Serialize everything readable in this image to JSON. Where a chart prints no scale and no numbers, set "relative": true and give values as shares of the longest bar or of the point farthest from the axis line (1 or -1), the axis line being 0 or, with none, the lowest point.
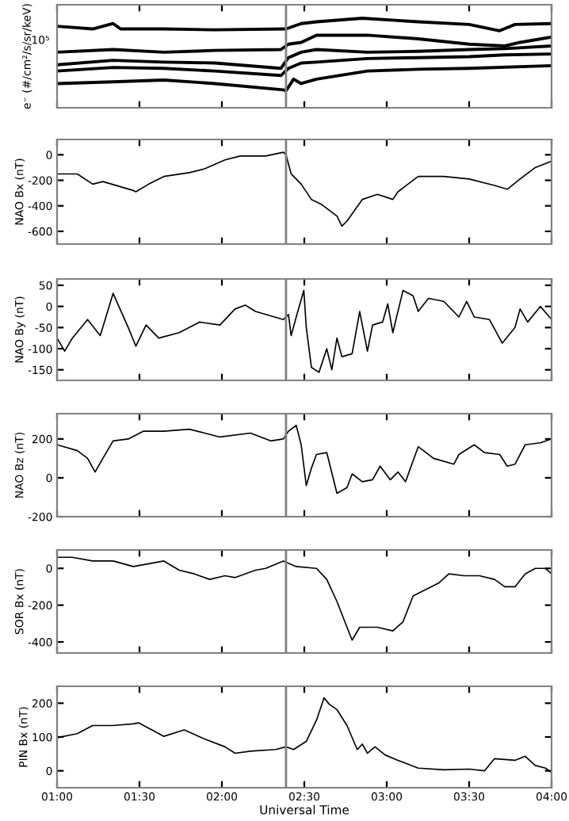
{
  "chart_data": [
    {
      "type": "line",
      "relative": true,
      "ylabel": "e⁻ (#/cm²/s/sr/keV)",
      "annotations": [
        "10⁵"
      ],
      "tick_labels": false,
      "xlim": [
        1,
        4
      ],
      "xticks": [
        {
          "value": 1,
          "label": null
        },
        {
          "value": 1.5,
          "label": null
        },
        {
          "value": 2,
          "label": null
        },
        {
          "value": 2.5,
          "label": null
        },
        {
          "value": 3,
          "label": null
        },
        {
          "value": 3.5,
          "label": null
        },
        {
          "value": 4,
          "label": null
        }
      ],
      "ref_lines": [
        {
          "axis": "x",
          "value": 2.389,
          "label": null,
          "color": "#808080"
        }
      ],
      "series": [
        {
          "color": "#000000",
          "x": [
            1.0,
            1.216,
            1.34,
            1.386,
            1.648,
            1.957,
            2.389,
            2.481,
            2.574,
            2.852,
            3.191,
            3.5,
            3.685,
            3.778,
            4.0
          ],
          "values": [
            0.91,
            0.88,
            0.94,
            0.88,
            0.88,
            0.87,
            0.88,
            0.94,
            0.96,
            1.0,
            0.96,
            0.93,
            0.86,
            0.93,
            0.94
          ]
        },
        {
          "color": "#000000",
          "x": [
            1.0,
            1.34,
            1.648,
            1.957,
            2.358,
            2.404,
            2.481,
            2.574,
            2.883,
            3.191,
            3.5,
            3.716,
            3.809,
            4.0
          ],
          "values": [
            0.62,
            0.65,
            0.62,
            0.64,
            0.65,
            0.71,
            0.73,
            0.81,
            0.81,
            0.77,
            0.71,
            0.69,
            0.73,
            0.79
          ]
        },
        {
          "color": "#000000",
          "x": [
            1.0,
            1.34,
            1.648,
            1.957,
            2.358,
            2.404,
            2.481,
            2.574,
            2.883,
            3.191,
            3.5,
            3.716,
            4.0
          ],
          "values": [
            0.48,
            0.53,
            0.51,
            0.5,
            0.44,
            0.56,
            0.62,
            0.65,
            0.62,
            0.63,
            0.65,
            0.66,
            0.69
          ]
        },
        {
          "color": "#000000",
          "x": [
            1.0,
            1.34,
            1.648,
            1.957,
            2.358,
            2.404,
            2.481,
            2.574,
            2.883,
            3.191,
            3.5,
            3.716,
            4.0
          ],
          "values": [
            0.41,
            0.45,
            0.44,
            0.41,
            0.36,
            0.44,
            0.5,
            0.51,
            0.55,
            0.56,
            0.57,
            0.59,
            0.6
          ]
        },
        {
          "color": "#000000",
          "x": [
            1.0,
            1.34,
            1.648,
            1.957,
            2.373,
            2.389,
            2.435,
            2.481,
            2.574,
            2.883,
            3.191,
            3.5,
            4.0
          ],
          "values": [
            0.27,
            0.29,
            0.31,
            0.27,
            0.2,
            0.19,
            0.32,
            0.27,
            0.32,
            0.41,
            0.43,
            0.44,
            0.47
          ]
        }
      ]
    },
    {
      "type": "line",
      "ylabel": "NAO Bx (nT)",
      "tick_labels": "y",
      "xlim": [
        1,
        4
      ],
      "xticks": [
        {
          "value": 1,
          "label": null
        },
        {
          "value": 1.5,
          "label": null
        },
        {
          "value": 2,
          "label": null
        },
        {
          "value": 2.5,
          "label": null
        },
        {
          "value": 3,
          "label": null
        },
        {
          "value": 3.5,
          "label": null
        },
        {
          "value": 4,
          "label": null
        }
      ],
      "ylim": [
        -700,
        120
      ],
      "yticks": [
        -600,
        -400,
        -200,
        0
      ],
      "ref_lines": [
        {
          "axis": "x",
          "value": 2.389,
          "label": null,
          "color": "#808080"
        }
      ],
      "series": [
        {
          "color": "#000000",
          "x": [
            1.0,
            1.123,
            1.216,
            1.278,
            1.463,
            1.478,
            1.556,
            1.648,
            1.802,
            1.895,
            2.019,
            2.111,
            2.265,
            2.373,
            2.389,
            2.42,
            2.451,
            2.481,
            2.543,
            2.605,
            2.698,
            2.728,
            2.759,
            2.852,
            2.944,
            3.037,
            3.068,
            3.191,
            3.346,
            3.5,
            3.654,
            3.731,
            3.809,
            3.901,
            4.0
          ],
          "values": [
            -150,
            -150,
            -230,
            -210,
            -280,
            -290,
            -230,
            -170,
            -140,
            -110,
            -40,
            -10,
            -10,
            20,
            0,
            -150,
            -190,
            -230,
            -350,
            -390,
            -480,
            -560,
            -520,
            -350,
            -310,
            -350,
            -290,
            -170,
            -170,
            -190,
            -240,
            -270,
            -190,
            -100,
            -50
          ]
        }
      ]
    },
    {
      "type": "line",
      "ylabel": "NAO By (nT)",
      "tick_labels": "y",
      "xlim": [
        1,
        4
      ],
      "xticks": [
        {
          "value": 1,
          "label": null
        },
        {
          "value": 1.5,
          "label": null
        },
        {
          "value": 2,
          "label": null
        },
        {
          "value": 2.5,
          "label": null
        },
        {
          "value": 3,
          "label": null
        },
        {
          "value": 3.5,
          "label": null
        },
        {
          "value": 4,
          "label": null
        }
      ],
      "ylim": [
        -175,
        65
      ],
      "yticks": [
        -150,
        -100,
        -50,
        0,
        50
      ],
      "ref_lines": [
        {
          "axis": "x",
          "value": 2.389,
          "label": null,
          "color": "#808080"
        }
      ],
      "series": [
        {
          "color": "#000000",
          "x": [
            1.0,
            1.046,
            1.093,
            1.185,
            1.262,
            1.34,
            1.432,
            1.478,
            1.54,
            1.617,
            1.741,
            1.864,
            1.988,
            2.08,
            2.142,
            2.204,
            2.373,
            2.404,
            2.42,
            2.451,
            2.497,
            2.512,
            2.543,
            2.589,
            2.636,
            2.667,
            2.698,
            2.728,
            2.79,
            2.836,
            2.883,
            2.914,
            2.975,
            3.006,
            3.037,
            3.099,
            3.16,
            3.191,
            3.253,
            3.346,
            3.438,
            3.485,
            3.531,
            3.623,
            3.701,
            3.778,
            3.809,
            3.855,
            3.932,
            4.0
          ],
          "values": [
            -75,
            -106,
            -75,
            -31,
            -69,
            31,
            -50,
            -94,
            -44,
            -75,
            -62,
            -37,
            -44,
            -6,
            3,
            -12,
            -31,
            -19,
            -69,
            -25,
            38,
            -50,
            -144,
            -156,
            -100,
            -150,
            -75,
            -119,
            -112,
            -12,
            -106,
            -44,
            -37,
            6,
            -62,
            38,
            25,
            -12,
            19,
            12,
            -25,
            12,
            -25,
            -31,
            -87,
            -50,
            -6,
            -37,
            0,
            -31
          ]
        }
      ]
    },
    {
      "type": "line",
      "ylabel": "NAO Bz (nT)",
      "tick_labels": "y",
      "xlim": [
        1,
        4
      ],
      "xticks": [
        {
          "value": 1,
          "label": null
        },
        {
          "value": 1.5,
          "label": null
        },
        {
          "value": 2,
          "label": null
        },
        {
          "value": 2.5,
          "label": null
        },
        {
          "value": 3,
          "label": null
        },
        {
          "value": 3.5,
          "label": null
        },
        {
          "value": 4,
          "label": null
        }
      ],
      "ylim": [
        -200,
        330
      ],
      "yticks": [
        -200,
        0,
        200
      ],
      "ref_lines": [
        {
          "axis": "x",
          "value": 2.389,
          "label": null,
          "color": "#808080"
        }
      ],
      "series": [
        {
          "color": "#000000",
          "x": [
            1.0,
            1.123,
            1.185,
            1.231,
            1.278,
            1.34,
            1.432,
            1.525,
            1.648,
            1.802,
            1.895,
            1.988,
            2.173,
            2.296,
            2.373,
            2.404,
            2.451,
            2.481,
            2.512,
            2.543,
            2.574,
            2.636,
            2.698,
            2.759,
            2.79,
            2.852,
            2.914,
            2.96,
            3.022,
            3.068,
            3.114,
            3.191,
            3.284,
            3.407,
            3.438,
            3.531,
            3.593,
            3.685,
            3.731,
            3.778,
            3.84,
            3.932,
            4.0
          ],
          "values": [
            170,
            140,
            100,
            30,
            100,
            190,
            200,
            240,
            240,
            250,
            230,
            210,
            230,
            190,
            200,
            240,
            270,
            170,
            -40,
            50,
            120,
            130,
            -80,
            -50,
            20,
            -20,
            -10,
            60,
            -10,
            30,
            -20,
            160,
            100,
            70,
            120,
            170,
            130,
            120,
            60,
            70,
            170,
            180,
            200
          ]
        }
      ]
    },
    {
      "type": "line",
      "ylabel": "SOR Bx (nT)",
      "tick_labels": "y",
      "xlim": [
        1,
        4
      ],
      "xticks": [
        {
          "value": 1,
          "label": null
        },
        {
          "value": 1.5,
          "label": null
        },
        {
          "value": 2,
          "label": null
        },
        {
          "value": 2.5,
          "label": null
        },
        {
          "value": 3,
          "label": null
        },
        {
          "value": 3.5,
          "label": null
        },
        {
          "value": 4,
          "label": null
        }
      ],
      "ylim": [
        -460,
        100
      ],
      "yticks": [
        -400,
        -200,
        0
      ],
      "ref_lines": [
        {
          "axis": "x",
          "value": 2.389,
          "label": null,
          "color": "#808080"
        }
      ],
      "series": [
        {
          "color": "#000000",
          "x": [
            1.0,
            1.093,
            1.216,
            1.34,
            1.463,
            1.648,
            1.741,
            1.833,
            1.926,
            2.019,
            2.08,
            2.204,
            2.265,
            2.373,
            2.451,
            2.574,
            2.636,
            2.698,
            2.759,
            2.79,
            2.836,
            2.944,
            3.037,
            3.099,
            3.16,
            3.315,
            3.377,
            3.469,
            3.562,
            3.654,
            3.716,
            3.778,
            3.84,
            3.901,
            3.963,
            4.0
          ],
          "values": [
            60,
            60,
            40,
            40,
            10,
            40,
            -10,
            -30,
            -60,
            -40,
            -50,
            -10,
            0,
            40,
            10,
            0,
            -60,
            -180,
            -320,
            -390,
            -320,
            -320,
            -340,
            -290,
            -150,
            -80,
            -30,
            -40,
            -40,
            -60,
            -100,
            -100,
            -30,
            0,
            0,
            -30
          ]
        }
      ]
    },
    {
      "type": "line",
      "ylabel": "PIN Bx (nT)",
      "xlabel": "Universal Time",
      "xlim": [
        1,
        4
      ],
      "xticks": [
        {
          "value": 1,
          "label": "01:00"
        },
        {
          "value": 1.5,
          "label": "01:30"
        },
        {
          "value": 2,
          "label": "02:00"
        },
        {
          "value": 2.5,
          "label": "02:30"
        },
        {
          "value": 3,
          "label": "03:00"
        },
        {
          "value": 3.5,
          "label": "03:30"
        },
        {
          "value": 4,
          "label": "04:00"
        }
      ],
      "ylim": [
        -50,
        250
      ],
      "yticks": [
        0,
        100,
        200
      ],
      "ref_lines": [
        {
          "axis": "x",
          "value": 2.389,
          "label": null,
          "color": "#808080"
        }
      ],
      "series": [
        {
          "color": "#000000",
          "x": [
            1.0,
            1.123,
            1.216,
            1.34,
            1.463,
            1.494,
            1.586,
            1.648,
            1.772,
            1.895,
            2.019,
            2.08,
            2.173,
            2.327,
            2.389,
            2.435,
            2.512,
            2.574,
            2.62,
            2.651,
            2.698,
            2.759,
            2.821,
            2.852,
            2.883,
            2.929,
            2.99,
            3.068,
            3.191,
            3.346,
            3.5,
            3.593,
            3.654,
            3.778,
            3.84,
            3.901,
            3.963,
            4.0
          ],
          "values": [
            98,
            110,
            134,
            134,
            139,
            142,
            118,
            102,
            121,
            94,
            71,
            52,
            58,
            63,
            71,
            63,
            87,
            150,
            216,
            197,
            181,
            134,
            63,
            79,
            52,
            71,
            47,
            31,
            8,
            3,
            5,
            0,
            36,
            31,
            43,
            16,
            8,
            -5
          ]
        }
      ]
    }
  ]
}
